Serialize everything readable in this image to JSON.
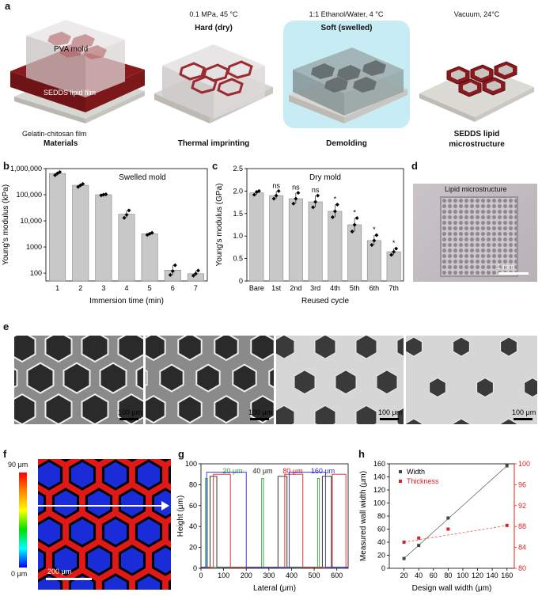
{
  "panel_letters": {
    "a": "a",
    "b": "b",
    "c": "c",
    "d": "d",
    "e": "e",
    "f": "f",
    "g": "g",
    "h": "h"
  },
  "panel_a": {
    "stages": [
      {
        "condition": "",
        "state": "",
        "label": "Materials"
      },
      {
        "condition": "0.1 MPa, 45 °C",
        "state": "Hard (dry)",
        "label": "Thermal imprinting"
      },
      {
        "condition": "1:1 Ethanol/Water, 4 °C",
        "state": "Soft (swelled)",
        "label": "Demolding"
      },
      {
        "condition": "Vacuum, 24°C",
        "state": "",
        "label_line1": "SEDDS lipid",
        "label_line2": "microstructure"
      }
    ],
    "material_labels": {
      "mold": "PVA mold",
      "film": "SEDDS lipid film",
      "substrate": "Gelatin-chitosan film"
    },
    "colors": {
      "lipid": "#8b1a1e",
      "highlight": "#c8ecf4",
      "substrate": "#d8d6d0"
    }
  },
  "panel_b": {
    "chart_data": {
      "type": "bar",
      "title": "Swelled mold",
      "xlabel": "Immersion time (min)",
      "ylabel": "Young's modulus (kPa)",
      "yscale": "log",
      "ylim": [
        50,
        1000000
      ],
      "ytick_values": [
        100,
        1000,
        10000,
        100000,
        1000000
      ],
      "ytick_labels": [
        "100",
        "1000",
        "10,000",
        "100,000",
        "1,000,000"
      ],
      "categories": [
        "1",
        "2",
        "3",
        "4",
        "5",
        "6",
        "7"
      ],
      "values": [
        650000,
        230000,
        100000,
        18000,
        3200,
        130,
        95
      ],
      "points": [
        [
          560000,
          650000,
          740000
        ],
        [
          200000,
          230000,
          260000
        ],
        [
          95000,
          100000,
          104000
        ],
        [
          13000,
          17000,
          25000
        ],
        [
          2900,
          3200,
          3500
        ],
        [
          85,
          120,
          200
        ],
        [
          80,
          95,
          125
        ]
      ]
    }
  },
  "panel_c": {
    "chart_data": {
      "type": "bar",
      "title": "Dry mold",
      "xlabel": "Reused cycle",
      "ylabel": "Young's modulus (GPa)",
      "ylim": [
        0,
        2.5
      ],
      "ytick_values": [
        0,
        0.5,
        1.0,
        1.5,
        2.0,
        2.5
      ],
      "ytick_labels": [
        "0",
        "0.5",
        "1.0",
        "1.5",
        "2.0",
        "2.5"
      ],
      "categories": [
        "Bare",
        "1st",
        "2nd",
        "3rd",
        "4th",
        "5th",
        "6th",
        "7th"
      ],
      "values": [
        1.96,
        1.9,
        1.83,
        1.76,
        1.55,
        1.25,
        0.9,
        0.65
      ],
      "points": [
        [
          1.92,
          1.98,
          2.0
        ],
        [
          1.83,
          1.9,
          2.0
        ],
        [
          1.72,
          1.83,
          1.96
        ],
        [
          1.64,
          1.76,
          1.9
        ],
        [
          1.42,
          1.55,
          1.7
        ],
        [
          1.1,
          1.25,
          1.4
        ],
        [
          0.8,
          0.9,
          1.02
        ],
        [
          0.58,
          0.65,
          0.72
        ]
      ],
      "annotations": [
        "",
        "ns",
        "ns",
        "ns",
        "*",
        "*",
        "*",
        "*"
      ]
    }
  },
  "panel_d": {
    "caption": "Lipid microstructure",
    "scale": "1 mm"
  },
  "panel_e": {
    "scales": [
      "100 μm",
      "100 μm",
      "100 μm",
      "100 μm"
    ]
  },
  "panel_f": {
    "top": "90 μm",
    "bottom": "0 μm",
    "scale": "200 μm"
  },
  "panel_g": {
    "chart_data": {
      "type": "line",
      "xlabel": "Lateral (μm)",
      "ylabel": "Height (μm)",
      "xlim": [
        0,
        650
      ],
      "ylim": [
        0,
        100
      ],
      "xtick_values": [
        0,
        100,
        200,
        300,
        400,
        500,
        600
      ],
      "ytick_values": [
        0,
        20,
        40,
        60,
        80,
        100
      ],
      "series": [
        {
          "name": "20 μm",
          "color": "#2e9e3e",
          "walls": [
            [
              20,
              28
            ],
            [
              268,
              276
            ],
            [
              515,
              523
            ]
          ]
        },
        {
          "name": "40 μm",
          "color": "#222222",
          "walls": [
            [
              40,
              70
            ],
            [
              340,
              380
            ],
            [
              536,
              576
            ]
          ]
        },
        {
          "name": "80 μm",
          "color": "#e02020",
          "walls": [
            [
              55,
              130
            ],
            [
              370,
              450
            ],
            [
              580,
              640
            ]
          ]
        },
        {
          "name": "160 μm",
          "color": "#2a2ae0",
          "walls": [
            [
              25,
              200
            ],
            [
              390,
              550
            ]
          ]
        }
      ],
      "heights": {
        "20 μm": 86,
        "40 μm": 88,
        "80 μm": 90,
        "160 μm": 92
      }
    }
  },
  "panel_h": {
    "chart_data": {
      "type": "scatter",
      "xlabel": "Design wall width (μm)",
      "ylabel_left": "Measured wall width (μm)",
      "ylabel_right": "Thickness",
      "xlim": [
        0,
        170
      ],
      "ylim_left": [
        0,
        160
      ],
      "ylim_right": [
        80,
        100
      ],
      "xtick_values": [
        20,
        40,
        60,
        80,
        100,
        120,
        140,
        160
      ],
      "ytick_left": [
        0,
        20,
        40,
        60,
        80,
        100,
        120,
        140,
        160
      ],
      "ytick_right": [
        80,
        84,
        88,
        92,
        96,
        100
      ],
      "series": [
        {
          "name": "Width",
          "color": "#444444",
          "x": [
            20,
            40,
            80,
            160
          ],
          "y": [
            15,
            35,
            77,
            157
          ],
          "axis": "left"
        },
        {
          "name": "Thickness",
          "color": "#e02020",
          "x": [
            20,
            40,
            80,
            160
          ],
          "y": [
            85,
            85.8,
            87.5,
            88.2
          ],
          "axis": "right"
        }
      ]
    }
  }
}
